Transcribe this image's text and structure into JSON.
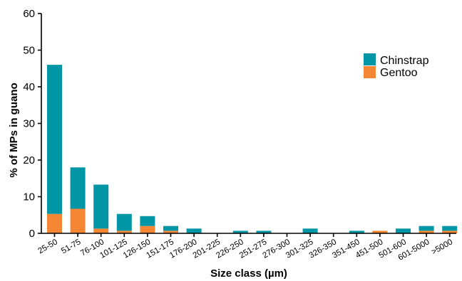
{
  "chart_data": {
    "type": "bar",
    "stacked": true,
    "title": "",
    "xlabel": "Size class (µm)",
    "ylabel": "% of MPs in guano",
    "ylim": [
      0,
      60
    ],
    "yticks": [
      0,
      10,
      20,
      30,
      40,
      50,
      60
    ],
    "grid": false,
    "legend_position": "top-right",
    "categories": [
      "25-50",
      "51-75",
      "76-100",
      "101-125",
      "126-150",
      "151-175",
      "176-200",
      "201-225",
      "226-250",
      "251-275",
      "276-300",
      "301-325",
      "326-350",
      "351-450",
      "451-500",
      "501-600",
      "601-5000",
      ">5000"
    ],
    "series": [
      {
        "name": "Gentoo",
        "color": "#f58634",
        "values": [
          5.3,
          6.7,
          1.3,
          0.7,
          2.0,
          0.7,
          0,
          0,
          0,
          0,
          0,
          0,
          0,
          0,
          0.7,
          0,
          0.7,
          0.7
        ]
      },
      {
        "name": "Chinstrap",
        "color": "#0096a6",
        "values": [
          40.7,
          11.3,
          12.0,
          4.6,
          2.7,
          1.3,
          1.3,
          0,
          0.7,
          0.7,
          0,
          1.3,
          0,
          0.7,
          0,
          1.3,
          1.3,
          1.3
        ]
      }
    ],
    "legend_order": [
      "Chinstrap",
      "Gentoo"
    ]
  }
}
